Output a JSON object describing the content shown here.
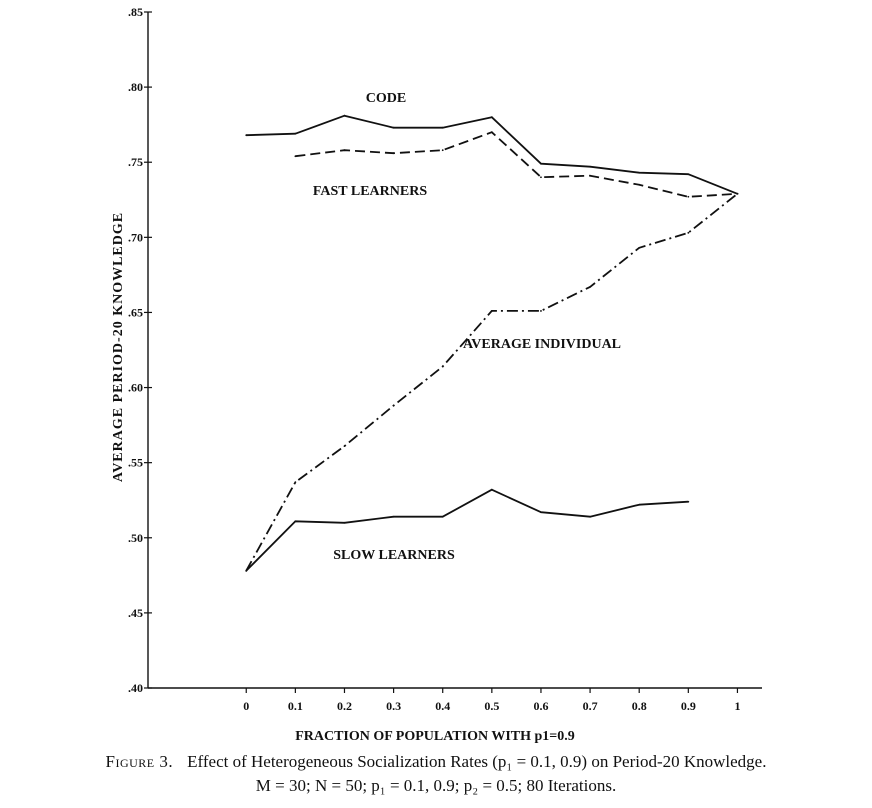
{
  "chart_data": {
    "type": "line",
    "xlabel": "FRACTION OF POPULATION WITH p1=0.9",
    "ylabel": "AVERAGE PERIOD-20 KNOWLEDGE",
    "xlim": [
      -0.2,
      1.05
    ],
    "ylim": [
      0.4,
      0.85
    ],
    "x_ticks": [
      0,
      0.1,
      0.2,
      0.3,
      0.4,
      0.5,
      0.6,
      0.7,
      0.8,
      0.9,
      1
    ],
    "x_tick_labels": [
      "0",
      "0.1",
      "0.2",
      "0.3",
      "0.4",
      "0.5",
      "0.6",
      "0.7",
      "0.8",
      "0.9",
      "1"
    ],
    "y_ticks": [
      0.4,
      0.45,
      0.5,
      0.55,
      0.6,
      0.65,
      0.7,
      0.75,
      0.8,
      0.85
    ],
    "y_tick_labels": [
      ".40",
      ".45",
      ".50",
      ".55",
      ".60",
      ".65",
      ".70",
      ".75",
      ".80",
      ".85"
    ],
    "grid": false,
    "legend": "none",
    "series": [
      {
        "name": "CODE",
        "style": "solid",
        "x": [
          0,
          0.1,
          0.2,
          0.3,
          0.4,
          0.5,
          0.6,
          0.7,
          0.8,
          0.9,
          1
        ],
        "values": [
          0.768,
          0.769,
          0.781,
          0.773,
          0.773,
          0.78,
          0.749,
          0.747,
          0.743,
          0.742,
          0.729
        ]
      },
      {
        "name": "FAST LEARNERS",
        "style": "dashed",
        "x": [
          0.1,
          0.2,
          0.3,
          0.4,
          0.5,
          0.6,
          0.7,
          0.8,
          0.9,
          1
        ],
        "values": [
          0.754,
          0.758,
          0.756,
          0.758,
          0.77,
          0.74,
          0.741,
          0.735,
          0.727,
          0.729
        ]
      },
      {
        "name": "AVERAGE INDIVIDUAL",
        "style": "dashdot",
        "x": [
          0,
          0.1,
          0.2,
          0.3,
          0.4,
          0.5,
          0.6,
          0.7,
          0.8,
          0.9,
          1
        ],
        "values": [
          0.478,
          0.537,
          0.561,
          0.588,
          0.614,
          0.651,
          0.651,
          0.667,
          0.693,
          0.703,
          0.729
        ]
      },
      {
        "name": "SLOW LEARNERS",
        "style": "solid",
        "x": [
          0,
          0.1,
          0.2,
          0.3,
          0.4,
          0.5,
          0.6,
          0.7,
          0.8,
          0.9
        ],
        "values": [
          0.478,
          0.511,
          0.51,
          0.514,
          0.514,
          0.532,
          0.517,
          0.514,
          0.522,
          0.524
        ]
      }
    ],
    "annotations": [
      "CODE",
      "FAST LEARNERS",
      "AVERAGE INDIVIDUAL",
      "SLOW LEARNERS"
    ]
  },
  "caption": {
    "figure_number": "Figure 3.",
    "line1": "Effect of Heterogeneous Socialization Rates (p₁ = 0.1, 0.9) on Period-20 Knowledge.",
    "line2": "M = 30; N = 50; p₁ = 0.1, 0.9; p₂ = 0.5; 80 Iterations."
  }
}
